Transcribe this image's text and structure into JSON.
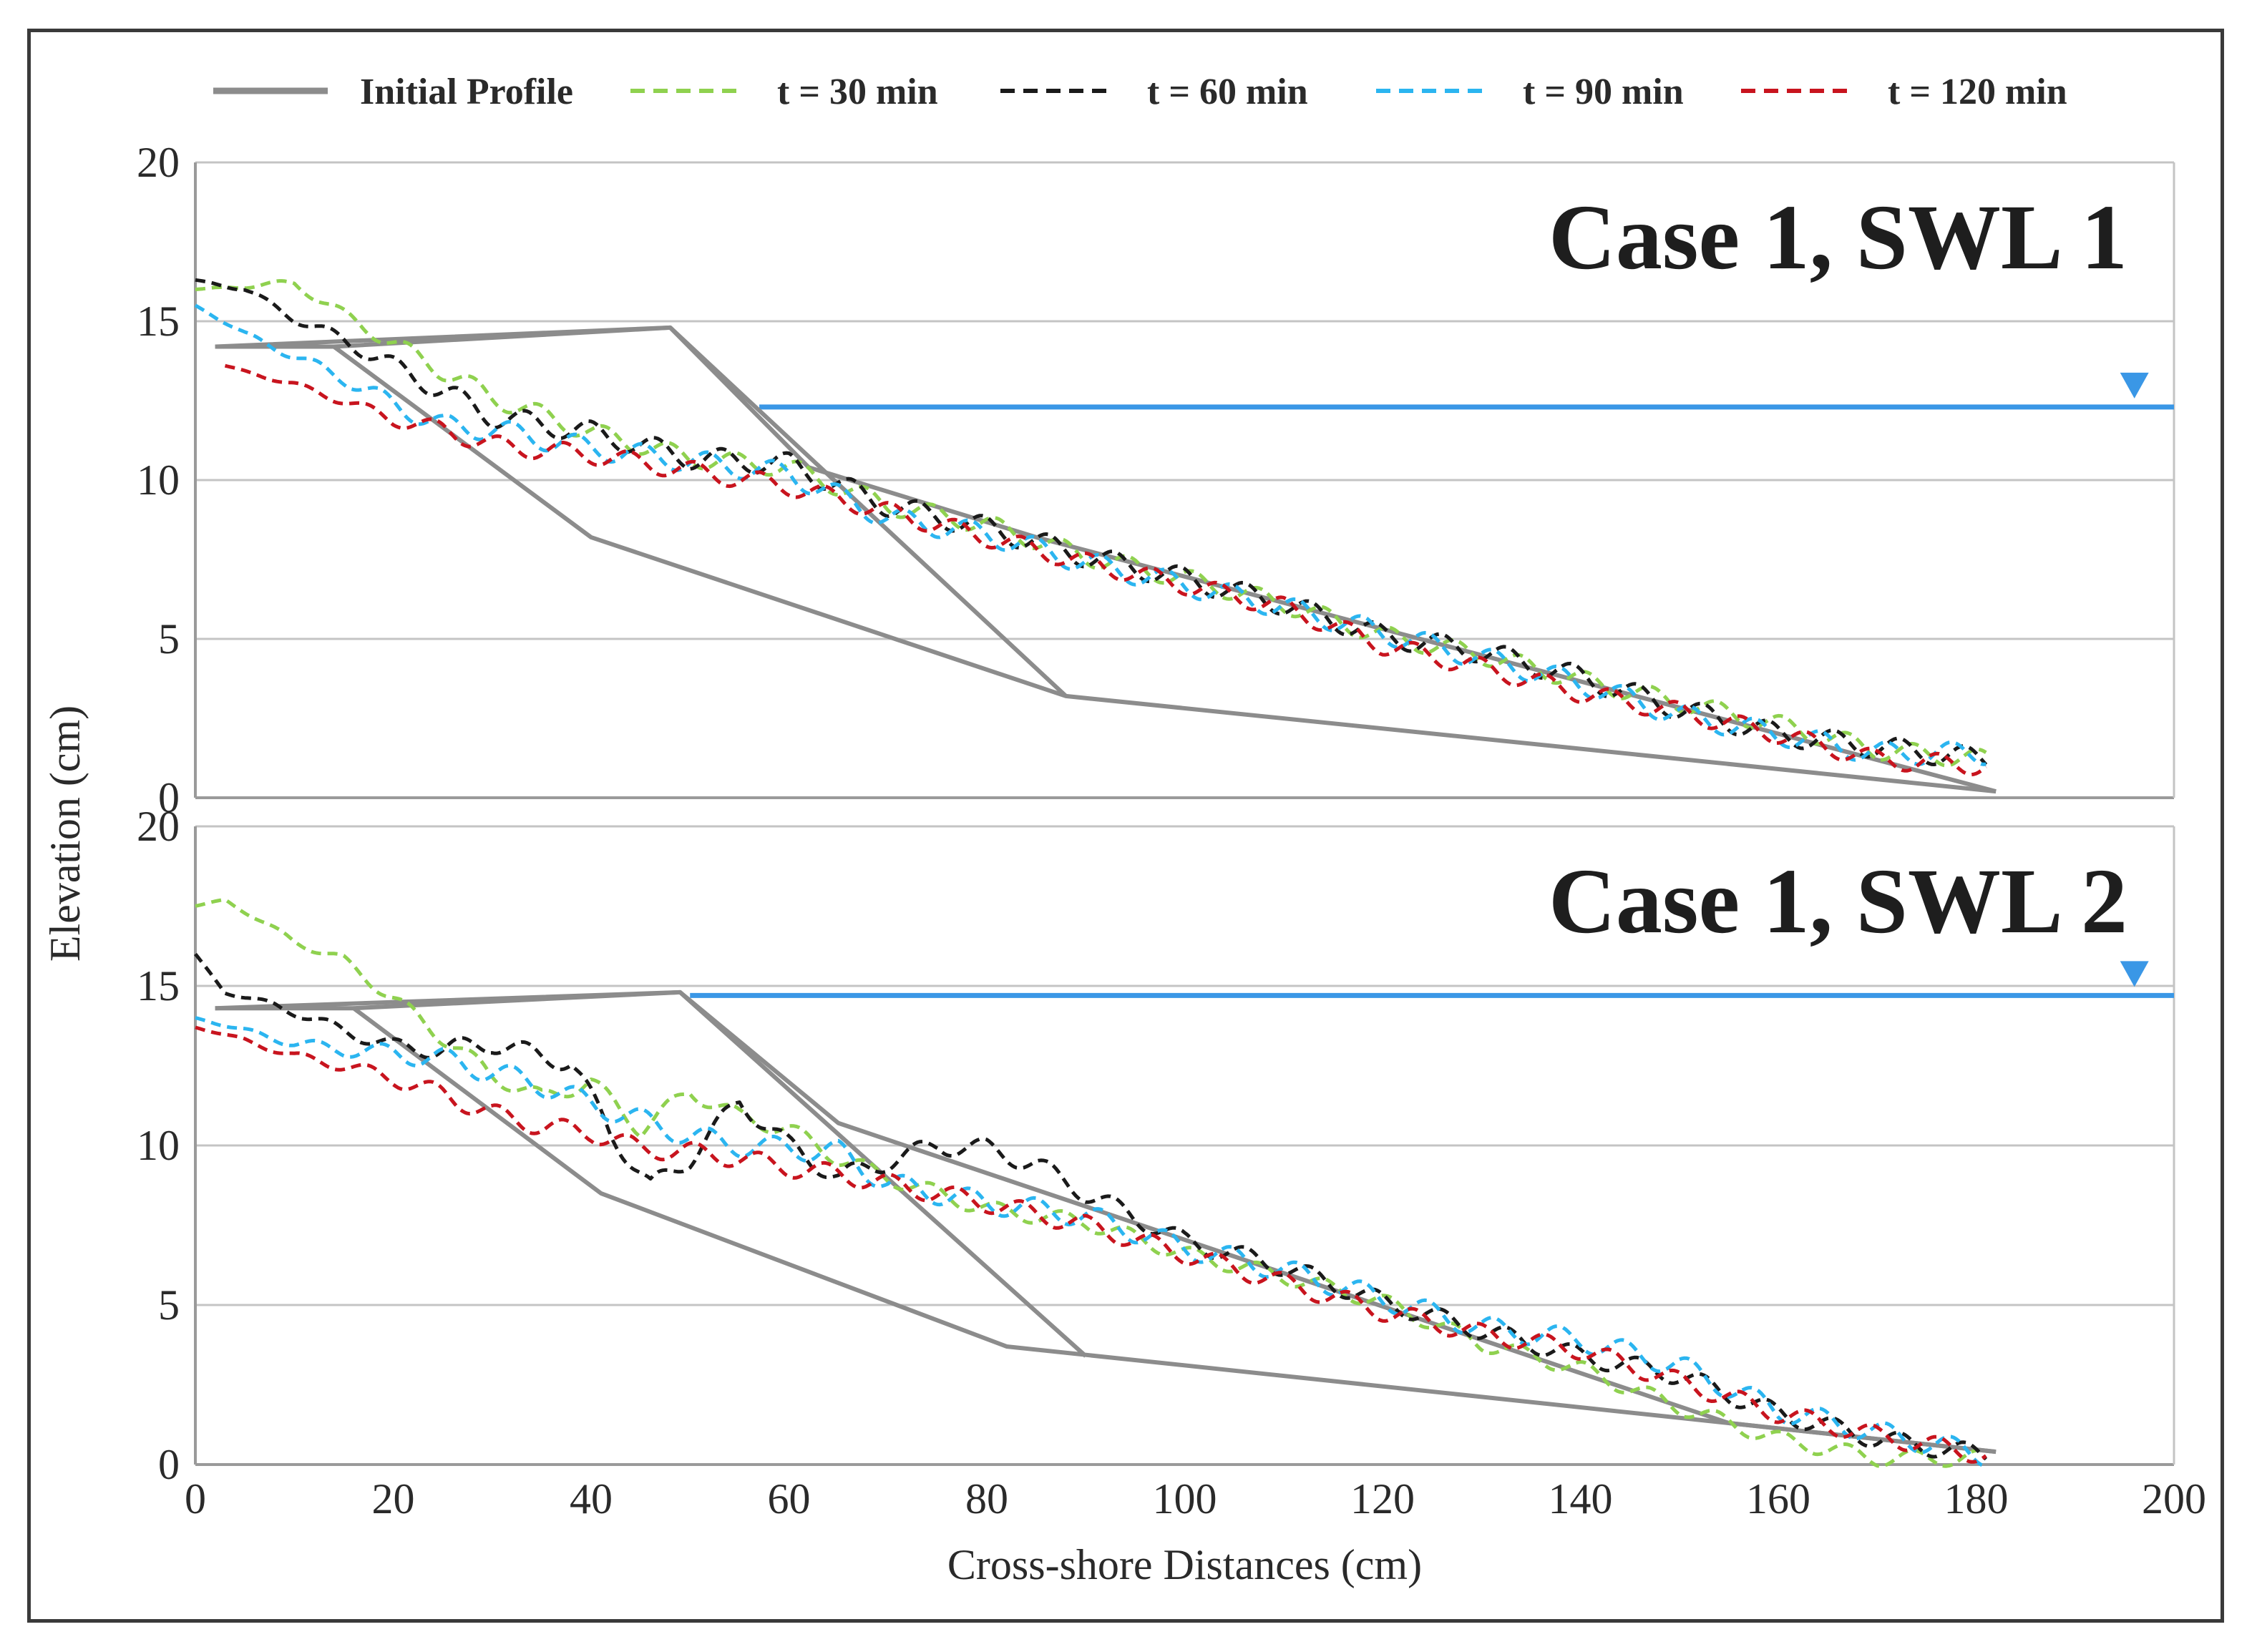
{
  "xlabel": "Cross-shore Distances (cm)",
  "ylabel": "Elevation (cm)",
  "colors": {
    "initial": "#8c8c8c",
    "t30": "#8fd14f",
    "t60": "#1a1a1a",
    "t90": "#2bb5f0",
    "t120": "#c8141e",
    "swl": "#3a97e6",
    "grid": "#c4c4c4"
  },
  "legend": [
    {
      "key": "initial",
      "label": "Initial Profile",
      "style": "solid"
    },
    {
      "key": "t30",
      "label": "t = 30 min",
      "style": "dashed"
    },
    {
      "key": "t60",
      "label": "t = 60 min",
      "style": "dashed"
    },
    {
      "key": "t90",
      "label": "t = 90 min",
      "style": "dashed"
    },
    {
      "key": "t120",
      "label": "t = 120 min",
      "style": "dashed"
    }
  ],
  "chart_data": [
    {
      "type": "line",
      "title": "Case 1, SWL 1",
      "xlabel": "Cross-shore Distances (cm)",
      "ylabel": "Elevation (cm)",
      "xlim": [
        0,
        200
      ],
      "ylim": [
        0,
        20
      ],
      "xticks": [
        0,
        20,
        40,
        60,
        80,
        100,
        120,
        140,
        160,
        180,
        200
      ],
      "yticks": [
        0,
        5,
        10,
        15,
        20
      ],
      "grid": true,
      "swl": {
        "elevation": 12.3,
        "x_start": 57,
        "x_end": 200
      },
      "initial_profile": [
        [
          [
            2,
            14.2
          ],
          [
            14,
            14.2
          ],
          [
            40,
            8.2
          ],
          [
            88,
            3.2
          ],
          [
            182,
            0.2
          ]
        ],
        [
          [
            2,
            14.2
          ],
          [
            48,
            14.8
          ],
          [
            88,
            3.2
          ]
        ],
        [
          [
            14,
            14.2
          ],
          [
            48,
            14.8
          ],
          [
            62,
            10.4
          ],
          [
            85,
            8.2
          ],
          [
            182,
            0.2
          ]
        ]
      ],
      "series": [
        {
          "name": "t = 30 min",
          "key": "t30",
          "x": [
            0,
            5,
            10,
            15,
            20,
            30,
            40,
            50,
            60,
            70,
            80,
            90,
            100,
            110,
            120,
            130,
            140,
            150,
            160,
            170,
            181
          ],
          "y": [
            16.0,
            16.1,
            16.2,
            15.2,
            14.3,
            12.6,
            11.5,
            10.7,
            10.4,
            9.2,
            8.6,
            7.6,
            6.9,
            6.1,
            5.1,
            4.5,
            3.7,
            3.0,
            2.3,
            1.5,
            1.2
          ],
          "wave": 0.3
        },
        {
          "name": "t = 60 min",
          "key": "t60",
          "x": [
            0,
            5,
            10,
            15,
            20,
            25,
            30,
            40,
            50,
            60,
            70,
            80,
            90,
            100,
            110,
            120,
            130,
            140,
            150,
            160,
            170,
            181
          ],
          "y": [
            16.3,
            16.0,
            15.1,
            14.4,
            13.6,
            12.8,
            12.0,
            11.5,
            10.7,
            10.5,
            9.2,
            8.5,
            7.6,
            6.9,
            6.1,
            5.1,
            4.6,
            3.8,
            2.8,
            2.0,
            1.6,
            1.2
          ],
          "wave": 0.35
        },
        {
          "name": "t = 90 min",
          "key": "t90",
          "x": [
            0,
            5,
            10,
            15,
            20,
            25,
            30,
            40,
            50,
            60,
            70,
            80,
            90,
            100,
            110,
            120,
            130,
            140,
            150,
            160,
            170,
            181
          ],
          "y": [
            15.5,
            14.6,
            13.9,
            13.2,
            12.4,
            11.7,
            11.6,
            11.0,
            10.6,
            10.2,
            8.8,
            8.3,
            7.4,
            6.7,
            6.0,
            5.2,
            4.4,
            3.6,
            2.6,
            2.0,
            1.4,
            1.4
          ],
          "wave": 0.35
        },
        {
          "name": "t = 120 min",
          "key": "t120",
          "x": [
            3,
            10,
            15,
            20,
            25,
            30,
            40,
            50,
            60,
            70,
            80,
            90,
            100,
            110,
            120,
            130,
            140,
            150,
            160,
            170,
            181
          ],
          "y": [
            13.6,
            13.0,
            12.5,
            11.9,
            11.6,
            11.1,
            10.8,
            10.3,
            9.8,
            9.0,
            8.2,
            7.4,
            6.7,
            6.0,
            4.8,
            4.1,
            3.3,
            2.7,
            2.0,
            1.2,
            1.0
          ],
          "wave": 0.3
        }
      ]
    },
    {
      "type": "line",
      "title": "Case 1, SWL 2",
      "xlabel": "Cross-shore Distances (cm)",
      "ylabel": "Elevation (cm)",
      "xlim": [
        0,
        200
      ],
      "ylim": [
        0,
        20
      ],
      "xticks": [
        0,
        20,
        40,
        60,
        80,
        100,
        120,
        140,
        160,
        180,
        200
      ],
      "yticks": [
        0,
        5,
        10,
        15,
        20
      ],
      "grid": true,
      "swl": {
        "elevation": 14.7,
        "x_start": 50,
        "x_end": 200
      },
      "initial_profile": [
        [
          [
            2,
            14.3
          ],
          [
            16,
            14.3
          ],
          [
            41,
            8.5
          ],
          [
            82,
            3.7
          ],
          [
            155,
            1.3
          ],
          [
            182,
            0.4
          ]
        ],
        [
          [
            2,
            14.3
          ],
          [
            49,
            14.8
          ],
          [
            90,
            3.4
          ]
        ],
        [
          [
            16,
            14.3
          ],
          [
            49,
            14.8
          ],
          [
            65,
            10.7
          ],
          [
            155,
            1.3
          ],
          [
            182,
            0.4
          ]
        ]
      ],
      "series": [
        {
          "name": "t = 30 min",
          "key": "t30",
          "x": [
            0,
            3,
            10,
            15,
            20,
            25,
            30,
            35,
            40,
            45,
            50,
            55,
            60,
            65,
            70,
            80,
            90,
            100,
            110,
            120,
            130,
            140,
            150,
            160,
            170,
            180
          ],
          "y": [
            17.5,
            17.7,
            16.4,
            15.8,
            14.6,
            13.4,
            12.2,
            11.5,
            12.0,
            10.5,
            11.7,
            10.9,
            10.5,
            9.6,
            9.0,
            8.0,
            7.6,
            6.6,
            5.9,
            5.1,
            3.8,
            3.0,
            1.8,
            0.8,
            0.2,
            0.2
          ],
          "wave": 0.25
        },
        {
          "name": "t = 60 min",
          "key": "t60",
          "x": [
            0,
            3,
            8,
            15,
            20,
            25,
            30,
            35,
            38,
            42,
            46,
            50,
            55,
            60,
            65,
            70,
            75,
            80,
            85,
            90,
            100,
            110,
            120,
            130,
            140,
            150,
            160,
            170,
            181
          ],
          "y": [
            16.0,
            14.8,
            14.4,
            13.6,
            13.1,
            13.0,
            13.2,
            12.8,
            12.6,
            10.4,
            8.7,
            9.6,
            11.4,
            10.0,
            9.0,
            9.5,
            10.0,
            9.9,
            9.4,
            8.5,
            7.0,
            6.2,
            5.1,
            4.2,
            3.4,
            2.8,
            1.6,
            0.8,
            0.3
          ],
          "wave": 0.3
        },
        {
          "name": "t = 90 min",
          "key": "t90",
          "x": [
            0,
            5,
            10,
            15,
            20,
            25,
            30,
            35,
            40,
            45,
            50,
            55,
            60,
            65,
            70,
            80,
            90,
            100,
            110,
            120,
            130,
            140,
            150,
            160,
            170,
            181
          ],
          "y": [
            14.0,
            13.6,
            13.2,
            13.0,
            12.9,
            12.7,
            12.3,
            11.9,
            11.3,
            10.8,
            10.3,
            10.0,
            9.9,
            9.8,
            8.8,
            8.2,
            7.8,
            6.8,
            6.1,
            5.2,
            4.3,
            3.9,
            3.1,
            1.7,
            1.0,
            0.3
          ],
          "wave": 0.35
        },
        {
          "name": "t = 120 min",
          "key": "t120",
          "x": [
            0,
            5,
            10,
            15,
            20,
            25,
            30,
            35,
            40,
            45,
            50,
            55,
            60,
            65,
            70,
            80,
            90,
            100,
            110,
            120,
            130,
            140,
            150,
            160,
            170,
            181
          ],
          "y": [
            13.7,
            13.3,
            12.8,
            12.5,
            12.1,
            11.6,
            11.0,
            10.6,
            10.4,
            9.9,
            9.8,
            9.6,
            9.3,
            9.1,
            8.8,
            8.2,
            7.5,
            6.6,
            5.7,
            4.8,
            4.1,
            3.6,
            2.6,
            1.6,
            0.9,
            0.3
          ],
          "wave": 0.3
        }
      ]
    }
  ]
}
